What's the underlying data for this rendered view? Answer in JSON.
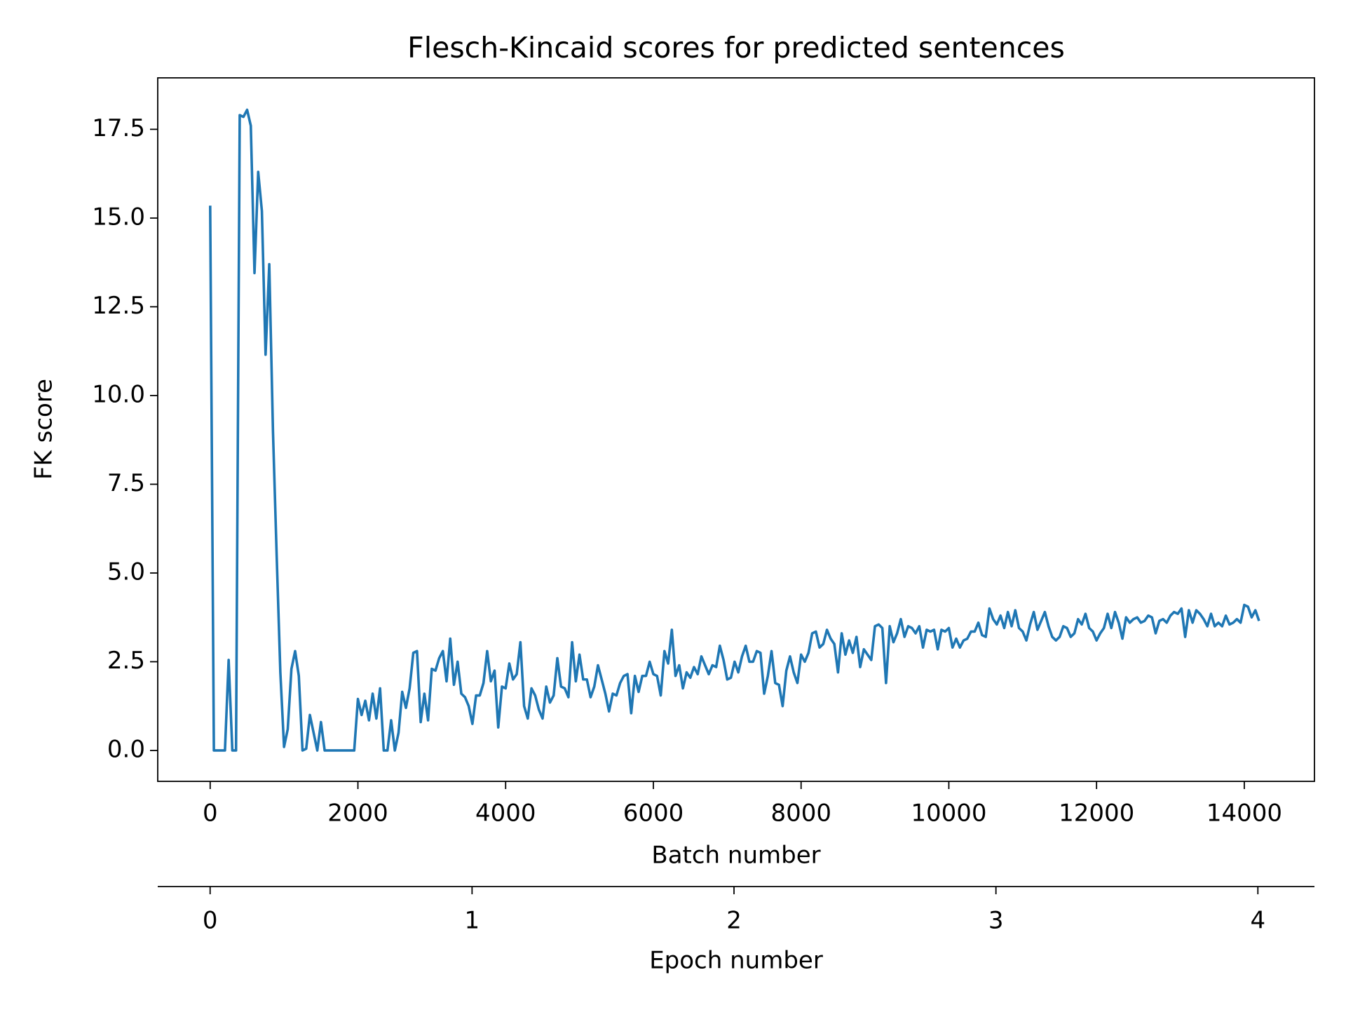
{
  "chart_data": {
    "type": "line",
    "title": "Flesch-Kincaid scores for predicted sentences",
    "x_label": "Batch number",
    "y_label": "FK score",
    "x2_label": "Epoch number",
    "x2lim": [
      -0.2,
      4.216
    ],
    "x2ticks": [
      0,
      1,
      2,
      3,
      4
    ],
    "xlim": [
      -710,
      14950
    ],
    "xticks": [
      0,
      2000,
      4000,
      6000,
      8000,
      10000,
      12000,
      14000
    ],
    "ylim": [
      -0.87,
      18.95
    ],
    "yticks": [
      0.0,
      2.5,
      5.0,
      7.5,
      10.0,
      12.5,
      15.0,
      17.5
    ],
    "ytick_labels": [
      "0.0",
      "2.5",
      "5.0",
      "7.5",
      "10.0",
      "12.5",
      "15.0",
      "17.5"
    ],
    "grid": false,
    "x": [
      0,
      50,
      100,
      150,
      200,
      250,
      300,
      350,
      400,
      450,
      500,
      550,
      600,
      650,
      700,
      750,
      800,
      850,
      900,
      950,
      1000,
      1050,
      1100,
      1150,
      1200,
      1250,
      1300,
      1350,
      1400,
      1450,
      1500,
      1550,
      1600,
      1650,
      1700,
      1750,
      1800,
      1850,
      1900,
      1950,
      2000,
      2050,
      2100,
      2150,
      2200,
      2250,
      2300,
      2350,
      2400,
      2450,
      2500,
      2550,
      2600,
      2650,
      2700,
      2750,
      2800,
      2850,
      2900,
      2950,
      3000,
      3050,
      3100,
      3150,
      3200,
      3250,
      3300,
      3350,
      3400,
      3450,
      3500,
      3550,
      3600,
      3650,
      3700,
      3750,
      3800,
      3850,
      3900,
      3950,
      4000,
      4050,
      4100,
      4150,
      4200,
      4250,
      4300,
      4350,
      4400,
      4450,
      4500,
      4550,
      4600,
      4650,
      4700,
      4750,
      4800,
      4850,
      4900,
      4950,
      5000,
      5050,
      5100,
      5150,
      5200,
      5250,
      5300,
      5350,
      5400,
      5450,
      5500,
      5550,
      5600,
      5650,
      5700,
      5750,
      5800,
      5850,
      5900,
      5950,
      6000,
      6050,
      6100,
      6150,
      6200,
      6250,
      6300,
      6350,
      6400,
      6450,
      6500,
      6550,
      6600,
      6650,
      6700,
      6750,
      6800,
      6850,
      6900,
      6950,
      7000,
      7050,
      7100,
      7150,
      7200,
      7250,
      7300,
      7350,
      7400,
      7450,
      7500,
      7550,
      7600,
      7650,
      7700,
      7750,
      7800,
      7850,
      7900,
      7950,
      8000,
      8050,
      8100,
      8150,
      8200,
      8250,
      8300,
      8350,
      8400,
      8450,
      8500,
      8550,
      8600,
      8650,
      8700,
      8750,
      8800,
      8850,
      8900,
      8950,
      9000,
      9050,
      9100,
      9150,
      9200,
      9250,
      9300,
      9350,
      9400,
      9450,
      9500,
      9550,
      9600,
      9650,
      9700,
      9750,
      9800,
      9850,
      9900,
      9950,
      10000,
      10050,
      10100,
      10150,
      10200,
      10250,
      10300,
      10350,
      10400,
      10450,
      10500,
      10550,
      10600,
      10650,
      10700,
      10750,
      10800,
      10850,
      10900,
      10950,
      11000,
      11050,
      11100,
      11150,
      11200,
      11250,
      11300,
      11350,
      11400,
      11450,
      11500,
      11550,
      11600,
      11650,
      11700,
      11750,
      11800,
      11850,
      11900,
      11950,
      12000,
      12050,
      12100,
      12150,
      12200,
      12250,
      12300,
      12350,
      12400,
      12450,
      12500,
      12550,
      12600,
      12650,
      12700,
      12750,
      12800,
      12850,
      12900,
      12950,
      13000,
      13050,
      13100,
      13150,
      13200,
      13250,
      13300,
      13350,
      13400,
      13450,
      13500,
      13550,
      13600,
      13650,
      13700,
      13750,
      13800,
      13850,
      13900,
      13950,
      14000,
      14050,
      14100,
      14150,
      14200
    ],
    "series": [
      {
        "color": "#1f77b4",
        "values": [
          15.35,
          0,
          0,
          0,
          0,
          2.55,
          0,
          0,
          17.9,
          17.85,
          18.05,
          17.6,
          13.45,
          16.3,
          15.2,
          11.15,
          13.7,
          9.0,
          5.5,
          2.2,
          0.1,
          0.6,
          2.3,
          2.8,
          2.1,
          0,
          0.05,
          1.0,
          0.5,
          0,
          0.8,
          0,
          0,
          0,
          0,
          0,
          0,
          0,
          0,
          0,
          1.45,
          1.0,
          1.4,
          0.85,
          1.6,
          0.9,
          1.75,
          0,
          0,
          0.85,
          0,
          0.5,
          1.65,
          1.2,
          1.75,
          2.75,
          2.8,
          0.8,
          1.6,
          0.85,
          2.3,
          2.25,
          2.6,
          2.8,
          1.95,
          3.15,
          1.85,
          2.5,
          1.6,
          1.5,
          1.25,
          0.75,
          1.55,
          1.55,
          1.9,
          2.8,
          1.95,
          2.25,
          0.65,
          1.8,
          1.75,
          2.45,
          2.0,
          2.15,
          3.05,
          1.25,
          0.9,
          1.75,
          1.55,
          1.15,
          0.9,
          1.8,
          1.35,
          1.55,
          2.6,
          1.8,
          1.75,
          1.5,
          3.05,
          1.95,
          2.7,
          2.0,
          2.0,
          1.5,
          1.8,
          2.4,
          2.0,
          1.6,
          1.1,
          1.6,
          1.55,
          1.9,
          2.1,
          2.15,
          1.05,
          2.1,
          1.65,
          2.1,
          2.1,
          2.5,
          2.15,
          2.1,
          1.55,
          2.8,
          2.45,
          3.4,
          2.1,
          2.4,
          1.75,
          2.2,
          2.05,
          2.35,
          2.15,
          2.65,
          2.4,
          2.15,
          2.4,
          2.35,
          2.95,
          2.55,
          2.0,
          2.05,
          2.5,
          2.2,
          2.65,
          2.95,
          2.5,
          2.5,
          2.8,
          2.75,
          1.6,
          2.1,
          2.8,
          1.9,
          1.85,
          1.25,
          2.25,
          2.65,
          2.2,
          1.9,
          2.7,
          2.5,
          2.75,
          3.3,
          3.35,
          2.9,
          3.0,
          3.4,
          3.15,
          3.0,
          2.2,
          3.3,
          2.7,
          3.1,
          2.75,
          3.2,
          2.35,
          2.85,
          2.7,
          2.55,
          3.5,
          3.55,
          3.45,
          1.9,
          3.5,
          3.05,
          3.3,
          3.7,
          3.2,
          3.5,
          3.45,
          3.3,
          3.5,
          2.9,
          3.4,
          3.35,
          3.4,
          2.85,
          3.4,
          3.35,
          3.45,
          2.9,
          3.15,
          2.9,
          3.1,
          3.15,
          3.35,
          3.35,
          3.6,
          3.25,
          3.2,
          4.0,
          3.7,
          3.55,
          3.8,
          3.45,
          3.9,
          3.5,
          3.95,
          3.45,
          3.35,
          3.1,
          3.55,
          3.9,
          3.4,
          3.65,
          3.9,
          3.5,
          3.2,
          3.1,
          3.2,
          3.5,
          3.45,
          3.2,
          3.3,
          3.7,
          3.55,
          3.85,
          3.45,
          3.35,
          3.1,
          3.3,
          3.45,
          3.85,
          3.45,
          3.9,
          3.6,
          3.15,
          3.75,
          3.6,
          3.7,
          3.75,
          3.6,
          3.65,
          3.8,
          3.75,
          3.3,
          3.65,
          3.7,
          3.6,
          3.8,
          3.9,
          3.85,
          4.0,
          3.2,
          3.95,
          3.6,
          3.95,
          3.85,
          3.7,
          3.5,
          3.85,
          3.5,
          3.6,
          3.5,
          3.8,
          3.55,
          3.6,
          3.7,
          3.6,
          4.1,
          4.05,
          3.75,
          3.95,
          3.65
        ]
      }
    ]
  }
}
